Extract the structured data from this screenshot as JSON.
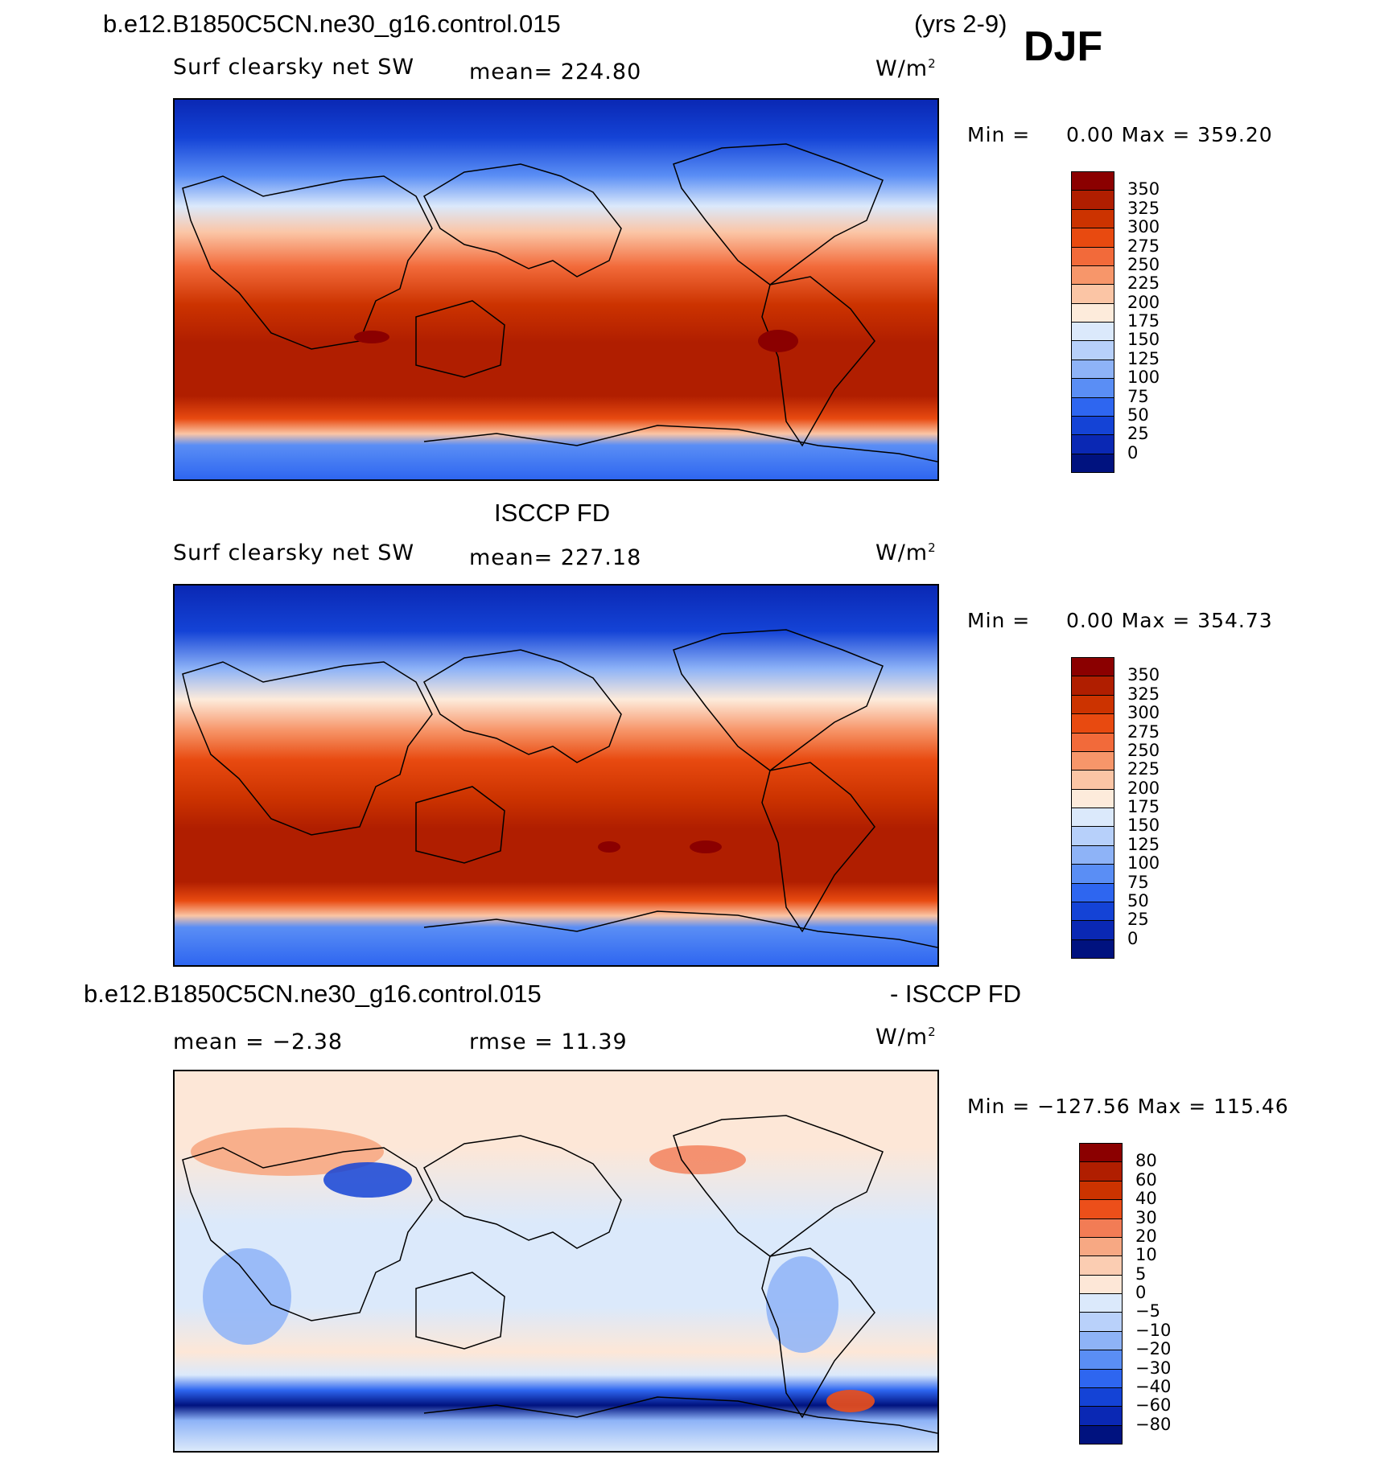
{
  "header": {
    "case": "b.e12.B1850C5CN.ne30_g16.control.015",
    "years": "(yrs 2-9)",
    "season": "DJF"
  },
  "panels": [
    {
      "title": "",
      "variable": "Surf clearsky net SW",
      "mean": "mean= 224.80",
      "units": "W/m",
      "units_sup": "2",
      "minmax_label": "Min =",
      "min": "0.00",
      "max_label": "Max =",
      "max": "359.20"
    },
    {
      "title": "ISCCP FD",
      "variable": "Surf clearsky net SW",
      "mean": "mean= 227.18",
      "units": "W/m",
      "units_sup": "2",
      "minmax_label": "Min =",
      "min": "0.00",
      "max_label": "Max =",
      "max": "354.73"
    },
    {
      "title": "b.e12.B1850C5CN.ne30_g16.control.015",
      "title_right": "- ISCCP FD",
      "mean": "mean =  −2.38",
      "rmse": "rmse =   11.39",
      "units": "W/m",
      "units_sup": "2",
      "minmax_label": "Min =",
      "min": "−127.56",
      "max_label": "Max =",
      "max": "115.46"
    }
  ],
  "colorbars": {
    "absolute": {
      "labels": [
        "350",
        "325",
        "300",
        "275",
        "250",
        "225",
        "200",
        "175",
        "150",
        "125",
        "100",
        "75",
        "50",
        "25",
        "0"
      ],
      "colors": [
        "#8b0000",
        "#b01e00",
        "#cc3300",
        "#e84a10",
        "#f26a3a",
        "#f7966a",
        "#fbc5a5",
        "#fdebdb",
        "#dbe9fb",
        "#b7d0fa",
        "#8eb3f7",
        "#5a8ef5",
        "#2e66f0",
        "#1443d6",
        "#0a28b4",
        "#00127f"
      ]
    },
    "difference": {
      "labels": [
        "80",
        "60",
        "40",
        "30",
        "20",
        "10",
        "5",
        "0",
        "−5",
        "−10",
        "−20",
        "−30",
        "−40",
        "−60",
        "−80"
      ],
      "colors": [
        "#8b0000",
        "#b01e00",
        "#cc3300",
        "#ec4f1a",
        "#f27c55",
        "#f7a883",
        "#fbcdb2",
        "#fde7d7",
        "#dbe9fb",
        "#b9d1fa",
        "#8eb3f7",
        "#5a8ef5",
        "#2e66f0",
        "#1443d6",
        "#0a28b4",
        "#00127f"
      ]
    }
  }
}
